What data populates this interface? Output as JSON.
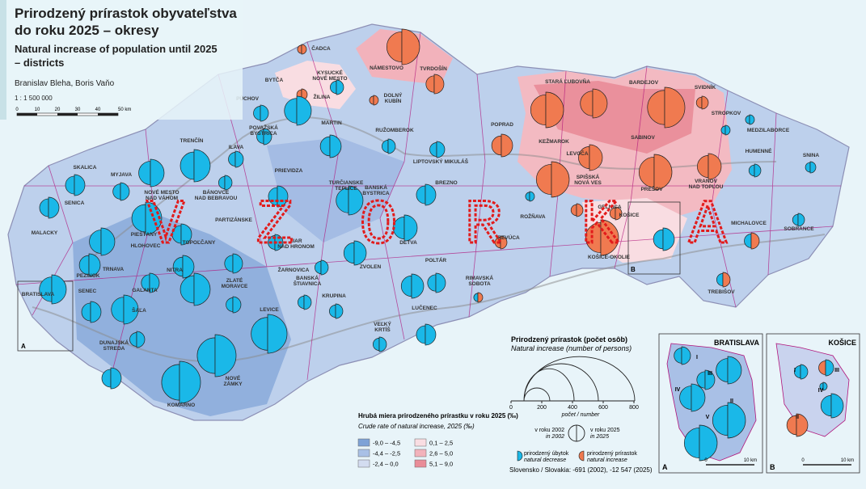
{
  "header": {
    "title_lines": [
      "Prirodzený prírastok obyvateľstva",
      "do roku 2025 – okresy"
    ],
    "subtitle_lines": [
      "Natural increase of population until 2025",
      "– districts"
    ],
    "authors": "Branislav Bleha, Boris Vaňo",
    "scale": "1 : 1 500 000",
    "scale_bar": [
      "0",
      "10",
      "20",
      "30",
      "40",
      "50 km"
    ]
  },
  "districts": [
    "ČADCA",
    "NÁMESTOVO",
    "TVRDOŠÍN",
    "BYTČA",
    "KYSUCKÉ",
    "NOVÉ MESTO",
    "DOLNÝ",
    "KUBÍN",
    "ŽILINA",
    "PÚCHOV",
    "STARÁ ĽUBOVŇA",
    "BARDEJOV",
    "SVIDNÍK",
    "POVAŽSKÁ",
    "BYSTRICA",
    "MARTIN",
    "RUŽOMBEROK",
    "POPRAD",
    "KEŽMAROK",
    "SABINOV",
    "STROPKOV",
    "MEDZILABORCE",
    "TRENČÍN",
    "ILAVA",
    "LEVOČA",
    "LIPTOVSKÝ MIKULÁŠ",
    "HUMENNÉ",
    "SNINA",
    "SKALICA",
    "MYJAVA",
    "PRIEVIDZA",
    "TURČIANSKE",
    "TEPLICE",
    "SPIŠSKÁ",
    "NOVÁ VES",
    "VRANOV",
    "NAD TOPĽOU",
    "BÁNOVCE",
    "NAD BEBRAVOU",
    "BREZNO",
    "SENICA",
    "NOVÉ MESTO",
    "NAD VÁHOM",
    "BANSKÁ",
    "BYSTRICA",
    "PREŠOV",
    "GELNICA",
    "KOŠICE",
    "ROŽŇAVA",
    "MALACKY",
    "PIEŠŤANY",
    "PARTIZÁNSKE",
    "TOPOĽČANY",
    "ŽIAR",
    "NAD HRONOM",
    "DETVA",
    "MICHALOVCE",
    "SOBRANCE",
    "HLOHOVEC",
    "REVÚCA",
    "KOŠICE-OKOLIE",
    "ŽARNOVICA",
    "POLTÁR",
    "PEZINOK",
    "TRNAVA",
    "NITRA",
    "ZLATÉ",
    "MORAVCE",
    "BANSKÁ",
    "ŠTIAVNICA",
    "ZVOLEN",
    "SENEC",
    "GALANTA",
    "RIMAVSKÁ",
    "SOBOTA",
    "TREBIŠOV",
    "BRATISLAVA",
    "ŠAĽA",
    "KRUPINA",
    "LEVICE",
    "LUČENEC",
    "VEĽKÝ",
    "KRTÍŠ",
    "DUNAJSKÁ",
    "STREDA",
    "NOVÉ",
    "ZÁMKY",
    "KOMÁRNO"
  ],
  "watermark": [
    "V",
    "Z",
    "O",
    "R",
    "K",
    "A"
  ],
  "legend": {
    "title": "Hrubá miera prirodzeného prírastku v roku 2025 (‰)",
    "subtitle": "Crude rate of natural increase, 2025 (‰)",
    "classes": [
      {
        "label": "-9,0 – -4,5",
        "color": "#7ea2d6"
      },
      {
        "label": "-4,4 – -2,5",
        "color": "#a9c0e6"
      },
      {
        "label": "-2,4 – 0,0",
        "color": "#d3dcf0"
      },
      {
        "label": "0,1 – 2,5",
        "color": "#f9dde2"
      },
      {
        "label": "2,6 – 5,0",
        "color": "#f2b2bb"
      },
      {
        "label": "5,1 – 9,0",
        "color": "#e98c98"
      }
    ]
  },
  "circle_legend": {
    "title": "Prirodzený prírastok (počet osôb)",
    "subtitle": "Natural increase (number of persons)",
    "ticks": [
      "0",
      "200",
      "400",
      "600",
      "800"
    ],
    "axis_label": "počet / number",
    "year_left": "v roku 2002",
    "year_left_en": "in 2002",
    "year_right": "v roku 2025",
    "year_right_en": "in 2025",
    "decrease": "prirodzený úbytok",
    "decrease_en": "natural decrease",
    "increase": "prirodzený prírastok",
    "increase_en": "natural increase",
    "total": "Slovensko / Slovakia: -691 (2002), -12 547 (2025)"
  },
  "insets": [
    {
      "title": "BRATISLAVA",
      "letter": "A",
      "parts": [
        "I",
        "II",
        "III",
        "IV",
        "V"
      ],
      "scale": [
        "0",
        "10 km"
      ]
    },
    {
      "title": "KOŠICE",
      "letter": "B",
      "parts": [
        "I",
        "II",
        "III",
        "IV"
      ],
      "scale": [
        "0",
        "10 km"
      ]
    }
  ]
}
